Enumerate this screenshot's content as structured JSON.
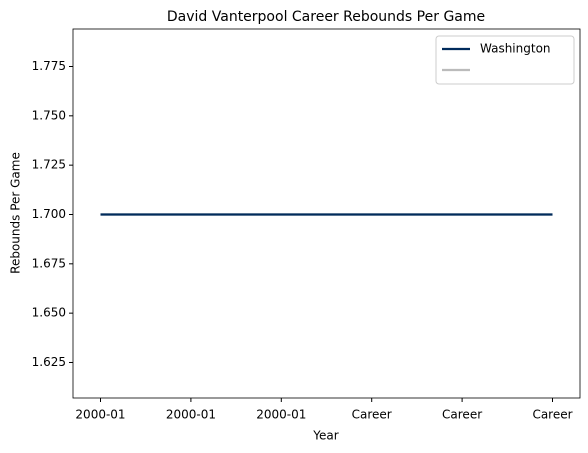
{
  "chart_data": {
    "type": "line",
    "title": "David Vanterpool Career Rebounds Per Game",
    "x_label": "Year",
    "y_label": "Rebounds Per Game",
    "categories": [
      "2000-01",
      "2000-01",
      "2000-01",
      "Career",
      "Career",
      "Career"
    ],
    "series": [
      {
        "name": "Washington",
        "color": "#002b5c",
        "values": [
          1.7,
          1.7,
          1.7,
          1.7,
          1.7,
          1.7
        ]
      },
      {
        "color": "#bbbbbb",
        "values": [
          1.7,
          1.7,
          1.7,
          1.7,
          1.7,
          1.7
        ]
      }
    ],
    "ylim": [
      1.607,
      1.794
    ],
    "yticks": [
      1.625,
      {
        "value": 1.65,
        "label": "1.650"
      },
      1.675,
      {
        "value": 1.7,
        "label": "1.700"
      },
      1.725,
      {
        "value": 1.75,
        "label": "1.750"
      },
      1.775
    ],
    "legend": "upper right"
  }
}
